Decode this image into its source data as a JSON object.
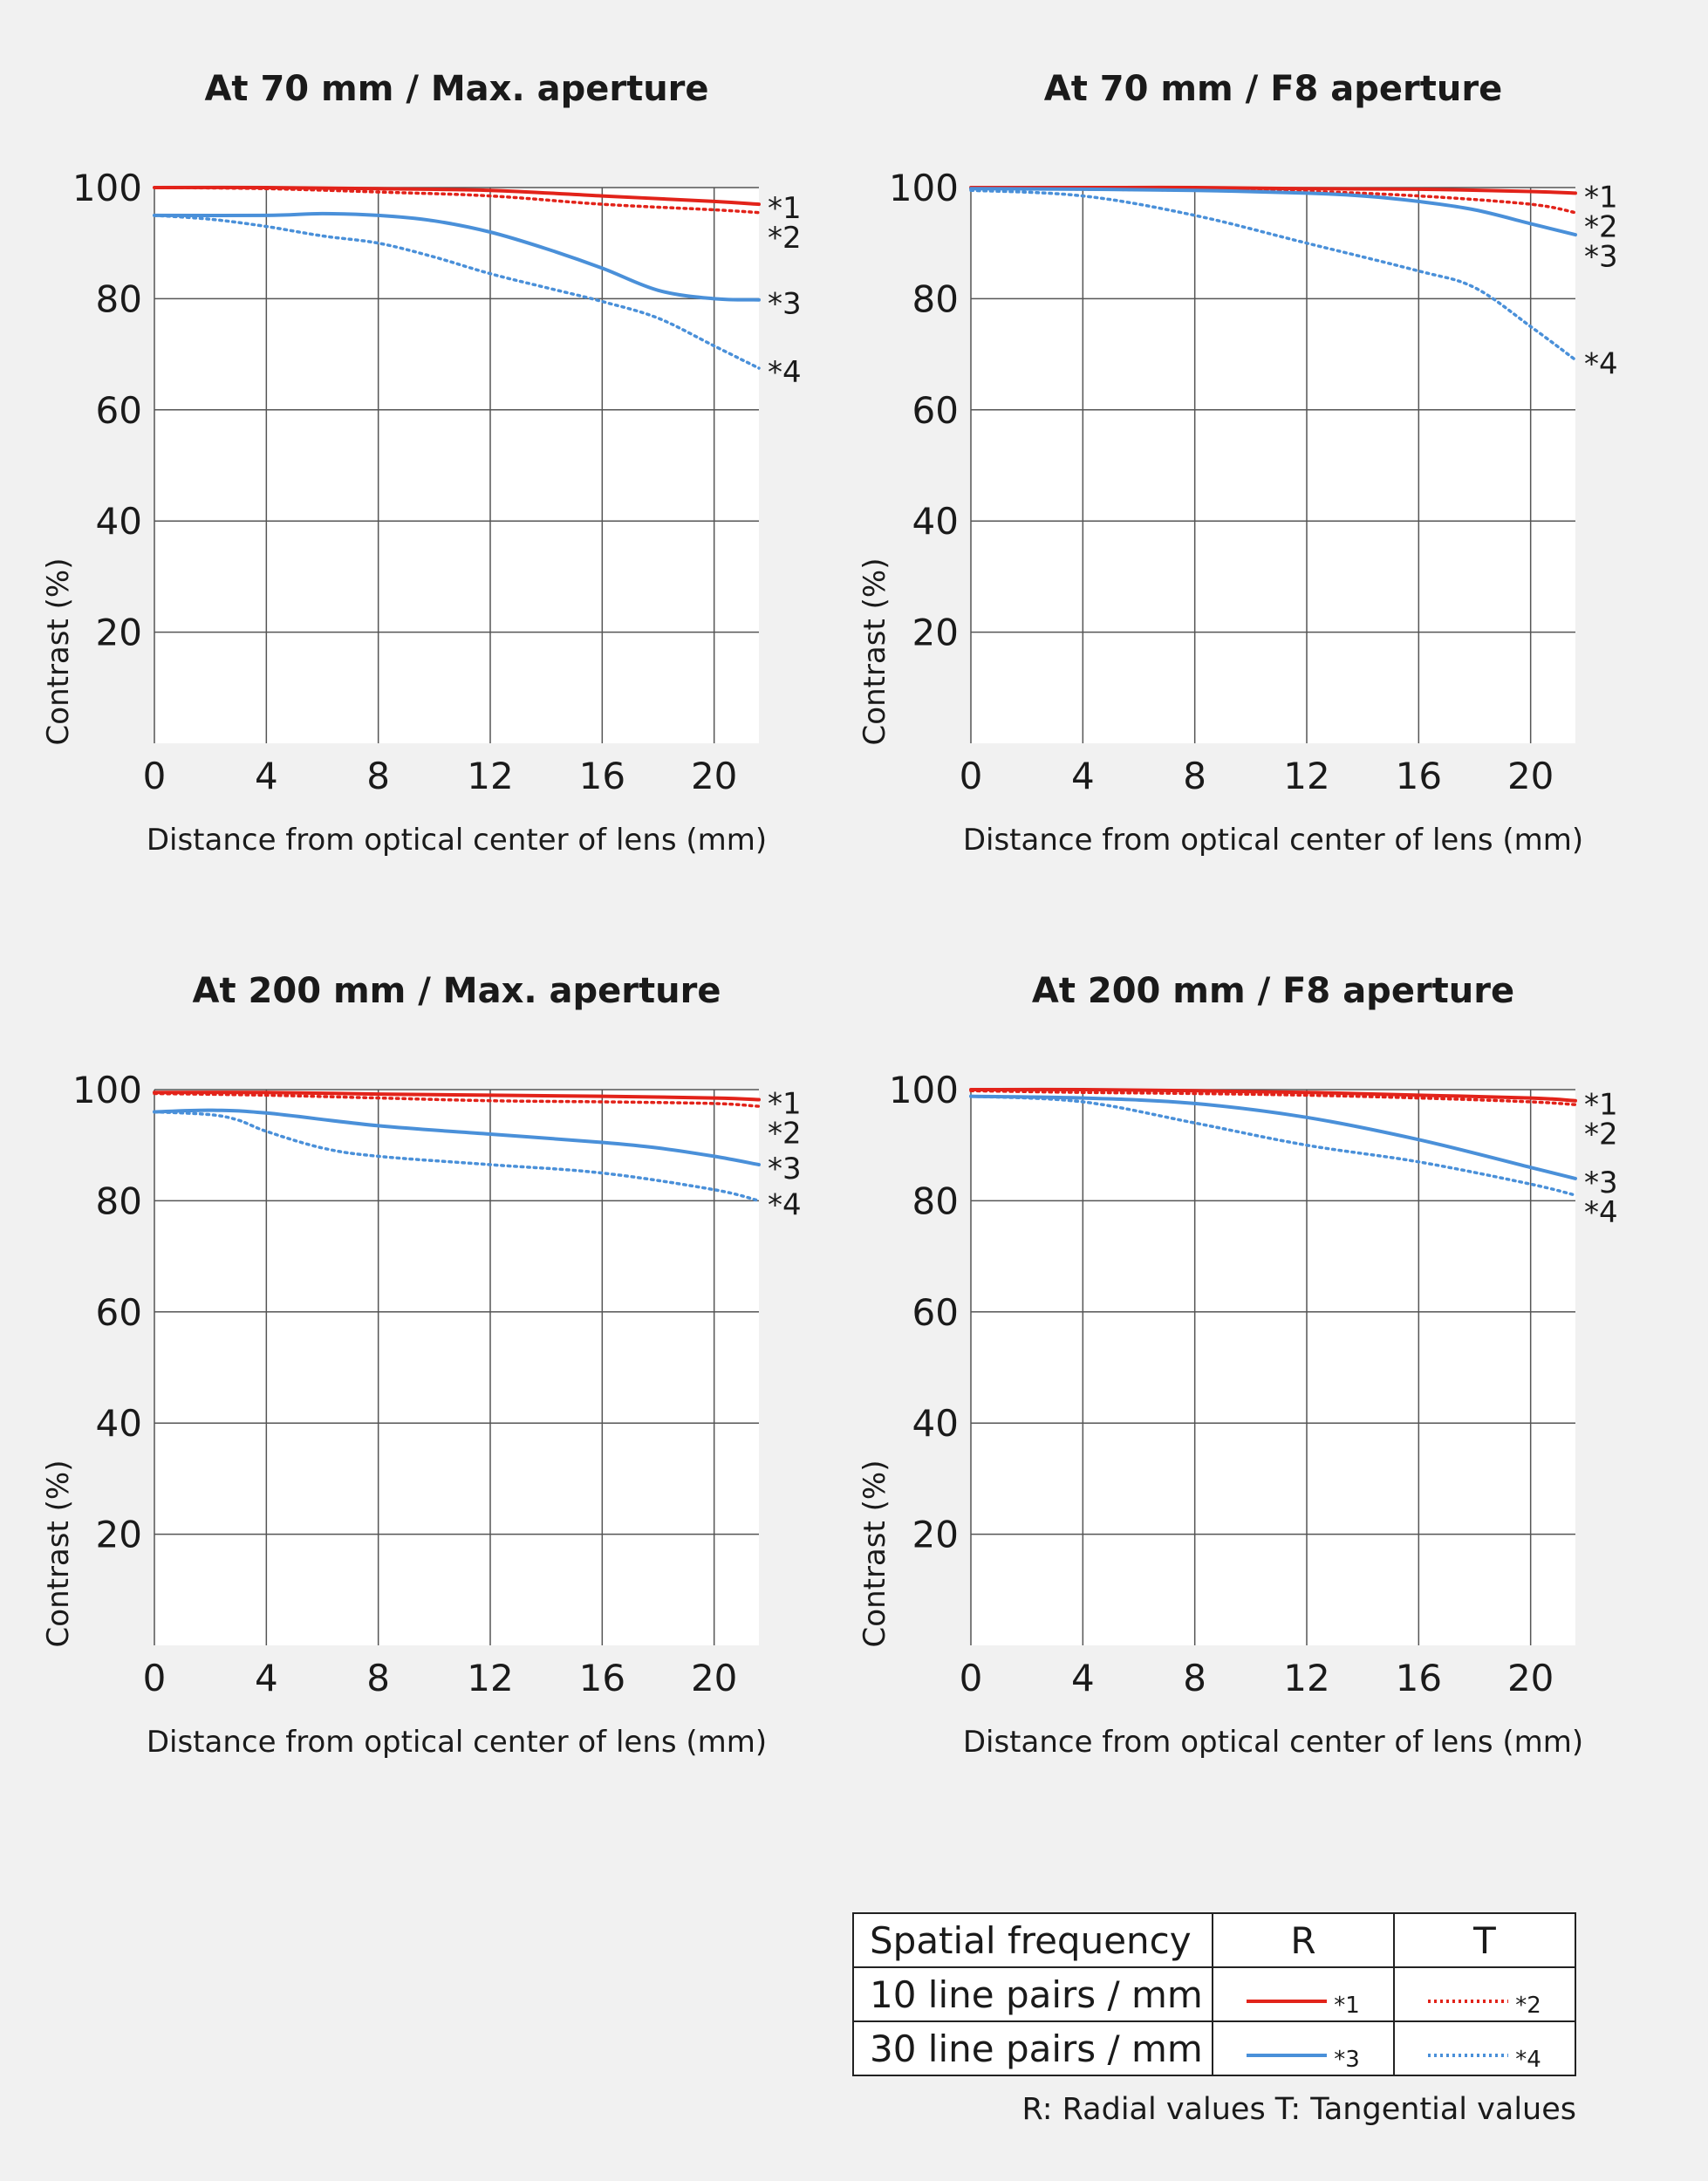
{
  "chart_data": [
    {
      "type": "line",
      "title": "At 70 mm / Max. aperture",
      "xlabel": "Distance from optical center of lens (mm)",
      "ylabel": "Contrast (%)",
      "xlim": [
        0,
        21.6
      ],
      "ylim": [
        0,
        100
      ],
      "xticks": [
        "0",
        "4",
        "8",
        "12",
        "16",
        "20"
      ],
      "yticks": [
        "100",
        "80",
        "60",
        "40",
        "20"
      ],
      "grid": true,
      "series": [
        {
          "name": "*1",
          "x": [
            0,
            4,
            8,
            12,
            16,
            20,
            21.6
          ],
          "values": [
            100,
            100,
            99.8,
            99.5,
            98.5,
            97.5,
            97
          ]
        },
        {
          "name": "*2",
          "x": [
            0,
            4,
            8,
            12,
            16,
            20,
            21.6
          ],
          "values": [
            100,
            99.8,
            99.2,
            98.5,
            97,
            96,
            95.5
          ]
        },
        {
          "name": "*3",
          "x": [
            0,
            4,
            6,
            8,
            10,
            12,
            14,
            16,
            18,
            20,
            21.6
          ],
          "values": [
            95,
            95,
            95.3,
            95,
            94,
            92,
            89,
            85.5,
            81.5,
            80,
            79.8
          ]
        },
        {
          "name": "*4",
          "x": [
            0,
            2,
            4,
            6,
            8,
            10,
            12,
            14,
            16,
            18,
            20,
            21.6
          ],
          "values": [
            95,
            94.3,
            93,
            91.3,
            90,
            87.5,
            84.5,
            82,
            79.5,
            76.5,
            71.5,
            67.5
          ]
        }
      ]
    },
    {
      "type": "line",
      "title": "At 70 mm / F8 aperture",
      "xlabel": "Distance from optical center of lens (mm)",
      "ylabel": "Contrast (%)",
      "xlim": [
        0,
        21.6
      ],
      "ylim": [
        0,
        100
      ],
      "xticks": [
        "0",
        "4",
        "8",
        "12",
        "16",
        "20"
      ],
      "yticks": [
        "100",
        "80",
        "60",
        "40",
        "20"
      ],
      "grid": true,
      "series": [
        {
          "name": "*1",
          "x": [
            0,
            4,
            8,
            12,
            16,
            20,
            21.6
          ],
          "values": [
            100,
            100,
            100,
            99.8,
            99.7,
            99.3,
            99
          ]
        },
        {
          "name": "*2",
          "x": [
            0,
            4,
            8,
            12,
            16,
            20,
            21.6
          ],
          "values": [
            99.8,
            99.7,
            99.5,
            99.3,
            98.5,
            97,
            95.5
          ]
        },
        {
          "name": "*3",
          "x": [
            0,
            4,
            8,
            12,
            14,
            16,
            18,
            20,
            21.6
          ],
          "values": [
            99.8,
            99.7,
            99.5,
            99,
            98.5,
            97.5,
            96,
            93.5,
            91.5
          ]
        },
        {
          "name": "*4",
          "x": [
            0,
            4,
            8,
            12,
            16,
            18,
            20,
            21.6
          ],
          "values": [
            99.5,
            98.5,
            95,
            90,
            85,
            82,
            75,
            69
          ]
        }
      ]
    },
    {
      "type": "line",
      "title": "At 200 mm / Max. aperture",
      "xlabel": "Distance from optical center of lens (mm)",
      "ylabel": "Contrast (%)",
      "xlim": [
        0,
        21.6
      ],
      "ylim": [
        0,
        100
      ],
      "xticks": [
        "0",
        "4",
        "8",
        "12",
        "16",
        "20"
      ],
      "yticks": [
        "100",
        "80",
        "60",
        "40",
        "20"
      ],
      "grid": true,
      "series": [
        {
          "name": "*1",
          "x": [
            0,
            4,
            8,
            12,
            16,
            20,
            21.6
          ],
          "values": [
            99.5,
            99.5,
            99.2,
            99,
            98.8,
            98.5,
            98.2
          ]
        },
        {
          "name": "*2",
          "x": [
            0,
            4,
            8,
            12,
            16,
            20,
            21.6
          ],
          "values": [
            99.3,
            99,
            98.5,
            98,
            97.8,
            97.5,
            97
          ]
        },
        {
          "name": "*3",
          "x": [
            0,
            2,
            4,
            8,
            12,
            16,
            18,
            20,
            21.6
          ],
          "values": [
            96,
            96.3,
            95.8,
            93.5,
            92,
            90.5,
            89.5,
            88,
            86.5
          ]
        },
        {
          "name": "*4",
          "x": [
            0,
            2,
            3,
            4,
            6,
            8,
            12,
            16,
            20,
            21.6
          ],
          "values": [
            96,
            95.5,
            94.5,
            92.5,
            89.5,
            88,
            86.5,
            85,
            82,
            80
          ]
        }
      ]
    },
    {
      "type": "line",
      "title": "At 200 mm / F8 aperture",
      "xlabel": "Distance from optical center of lens (mm)",
      "ylabel": "Contrast (%)",
      "xlim": [
        0,
        21.6
      ],
      "ylim": [
        0,
        100
      ],
      "xticks": [
        "0",
        "4",
        "8",
        "12",
        "16",
        "20"
      ],
      "yticks": [
        "100",
        "80",
        "60",
        "40",
        "20"
      ],
      "grid": true,
      "series": [
        {
          "name": "*1",
          "x": [
            0,
            4,
            8,
            12,
            16,
            20,
            21.6
          ],
          "values": [
            100,
            100,
            99.8,
            99.5,
            99,
            98.5,
            98
          ]
        },
        {
          "name": "*2",
          "x": [
            0,
            4,
            8,
            12,
            16,
            20,
            21.6
          ],
          "values": [
            99.8,
            99.5,
            99.3,
            99,
            98.5,
            97.8,
            97.3
          ]
        },
        {
          "name": "*3",
          "x": [
            0,
            4,
            8,
            12,
            16,
            20,
            21.6
          ],
          "values": [
            98.8,
            98.5,
            97.5,
            95,
            91,
            86,
            84
          ]
        },
        {
          "name": "*4",
          "x": [
            0,
            4,
            8,
            12,
            16,
            20,
            21.6
          ],
          "values": [
            98.8,
            97.8,
            94,
            90,
            87,
            83,
            81
          ]
        }
      ]
    }
  ],
  "series_styles": {
    "*1": {
      "color": "#e2231a",
      "dash": "solid"
    },
    "*2": {
      "color": "#e2231a",
      "dash": "dotted"
    },
    "*3": {
      "color": "#4a90d9",
      "dash": "solid"
    },
    "*4": {
      "color": "#4a90d9",
      "dash": "dotted"
    }
  },
  "legend": {
    "header": {
      "label": "Spatial frequency",
      "r": "R",
      "t": "T"
    },
    "rows": [
      {
        "label": "10 line pairs / mm",
        "r_mark": "*1",
        "t_mark": "*2"
      },
      {
        "label": "30 line pairs / mm",
        "r_mark": "*3",
        "t_mark": "*4"
      }
    ],
    "note": "R: Radial values  T: Tangential values"
  }
}
